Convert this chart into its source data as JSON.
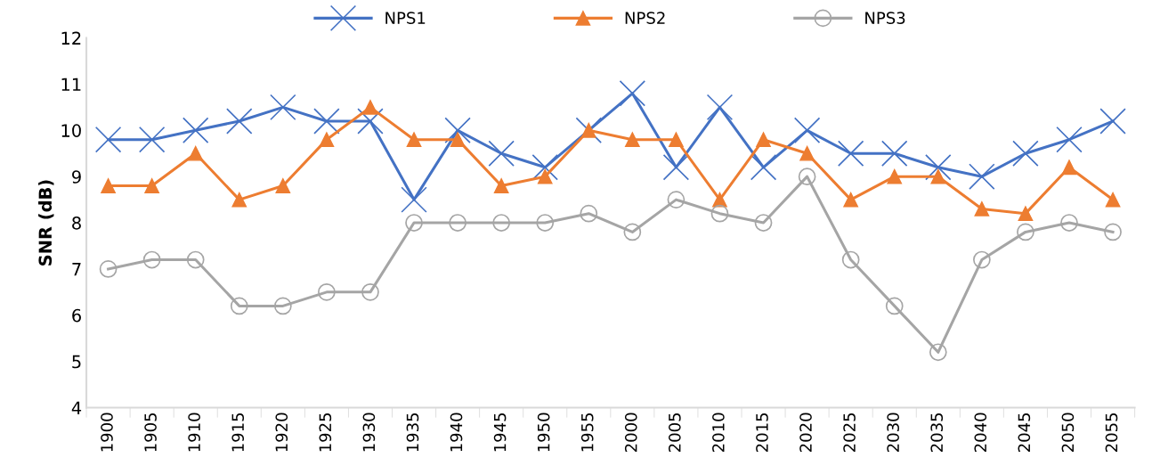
{
  "chart_data": {
    "type": "line",
    "ylabel": "SNR (dB)",
    "categories": [
      "1900",
      "1905",
      "1910",
      "1915",
      "1920",
      "1925",
      "1930",
      "1935",
      "1940",
      "1945",
      "1950",
      "1955",
      "2000",
      "2005",
      "2010",
      "2015",
      "2020",
      "2025",
      "2030",
      "2035",
      "2040",
      "2045",
      "2050",
      "2055"
    ],
    "series": [
      {
        "name": "NPS1",
        "color": "#4472c4",
        "marker": "cross",
        "values": [
          9.8,
          9.8,
          10.0,
          10.2,
          10.5,
          10.2,
          10.2,
          8.5,
          10.0,
          9.5,
          9.2,
          10.0,
          10.8,
          9.2,
          10.5,
          9.2,
          10.0,
          9.5,
          9.5,
          9.2,
          9.0,
          9.5,
          9.8,
          10.2
        ]
      },
      {
        "name": "NPS2",
        "color": "#ed7d31",
        "marker": "triangle",
        "values": [
          8.8,
          8.8,
          9.5,
          8.5,
          8.8,
          9.8,
          10.5,
          9.8,
          9.8,
          8.8,
          9.0,
          10.0,
          9.8,
          9.8,
          8.5,
          9.8,
          9.5,
          8.5,
          9.0,
          9.0,
          8.3,
          8.2,
          9.2,
          8.5
        ]
      },
      {
        "name": "NPS3",
        "color": "#a5a5a5",
        "marker": "circle",
        "values": [
          7.0,
          7.2,
          7.2,
          6.2,
          6.2,
          6.5,
          6.5,
          8.0,
          8.0,
          8.0,
          8.0,
          8.2,
          7.8,
          8.5,
          8.2,
          8.0,
          9.0,
          7.2,
          6.2,
          5.2,
          7.2,
          7.8,
          8.0,
          7.8
        ]
      }
    ],
    "ylim": [
      4,
      12
    ],
    "yticks": [
      4,
      5,
      6,
      7,
      8,
      9,
      10,
      11,
      12
    ],
    "grid": false,
    "legend": "top"
  }
}
